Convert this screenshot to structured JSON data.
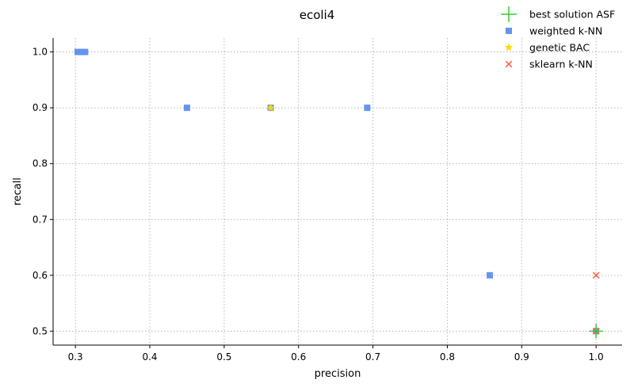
{
  "chart_data": {
    "type": "scatter",
    "title": "ecoli4",
    "xlabel": "precision",
    "ylabel": "recall",
    "xlim": [
      0.27,
      1.035
    ],
    "ylim": [
      0.475,
      1.025
    ],
    "xticks": [
      0.3,
      0.4,
      0.5,
      0.6,
      0.7,
      0.8,
      0.9,
      1.0
    ],
    "xtick_labels": [
      "0.3",
      "0.4",
      "0.5",
      "0.6",
      "0.7",
      "0.8",
      "0.9",
      "1.0"
    ],
    "yticks": [
      0.5,
      0.6,
      0.7,
      0.8,
      0.9,
      1.0
    ],
    "ytick_labels": [
      "0.5",
      "0.6",
      "0.7",
      "0.8",
      "0.9",
      "1.0"
    ],
    "grid": true,
    "legend_position": "top-right",
    "series": [
      {
        "name": "weighted k-NN",
        "marker": "square",
        "color": "#6495ED",
        "points": [
          {
            "x": 0.303,
            "y": 1.0
          },
          {
            "x": 0.308,
            "y": 1.0
          },
          {
            "x": 0.313,
            "y": 1.0
          },
          {
            "x": 0.45,
            "y": 0.9
          },
          {
            "x": 0.5625,
            "y": 0.9
          },
          {
            "x": 0.6923,
            "y": 0.9
          },
          {
            "x": 0.8571,
            "y": 0.6
          },
          {
            "x": 1.0,
            "y": 0.5
          }
        ]
      },
      {
        "name": "genetic BAC",
        "marker": "star",
        "color": "#FFD700",
        "points": [
          {
            "x": 0.5625,
            "y": 0.9
          }
        ]
      },
      {
        "name": "sklearn k-NN",
        "marker": "x",
        "color": "#FF6347",
        "points": [
          {
            "x": 1.0,
            "y": 0.6
          },
          {
            "x": 1.0,
            "y": 0.5
          }
        ]
      },
      {
        "name": "best solution ASF",
        "marker": "plus",
        "color": "#32CD32",
        "points": [
          {
            "x": 1.0,
            "y": 0.5
          }
        ]
      }
    ],
    "legend": [
      {
        "label": "best solution ASF",
        "marker": "plus",
        "color": "#32CD32"
      },
      {
        "label": "weighted k-NN",
        "marker": "square",
        "color": "#6495ED"
      },
      {
        "label": "genetic BAC",
        "marker": "star",
        "color": "#FFD700"
      },
      {
        "label": "sklearn k-NN",
        "marker": "x",
        "color": "#FF6347"
      }
    ]
  }
}
